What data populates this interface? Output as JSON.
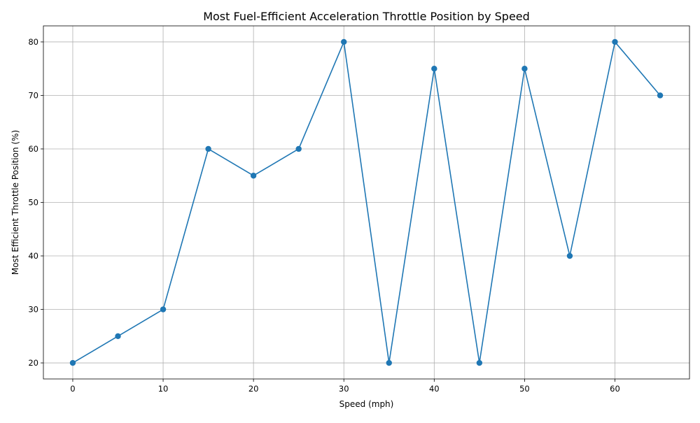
{
  "chart_data": {
    "type": "line",
    "title": "Most Fuel-Efficient Acceleration Throttle Position by Speed",
    "xlabel": "Speed (mph)",
    "ylabel": "Most Efficient Throttle Position (%)",
    "x": [
      0,
      5,
      10,
      15,
      20,
      25,
      30,
      35,
      40,
      45,
      50,
      55,
      60,
      65
    ],
    "series": [
      {
        "values": [
          20,
          25,
          30,
          60,
          55,
          60,
          80,
          20,
          75,
          20,
          75,
          40,
          80,
          70
        ],
        "color": "#1f77b4",
        "marker": "circle"
      }
    ],
    "xlim": [
      -3.25,
      68.25
    ],
    "ylim": [
      17,
      83
    ],
    "xticks": [
      0,
      10,
      20,
      30,
      40,
      50,
      60
    ],
    "yticks": [
      20,
      30,
      40,
      50,
      60,
      70,
      80
    ],
    "grid": true,
    "legend": "none"
  }
}
